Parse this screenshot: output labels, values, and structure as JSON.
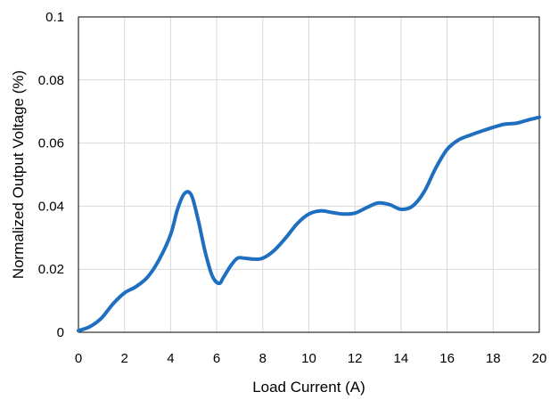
{
  "chart_data": {
    "type": "line",
    "title": "",
    "xlabel": "Load Current (A)",
    "ylabel": "Normalized Output Voltage (%)",
    "xlim": [
      0,
      20
    ],
    "ylim": [
      0,
      0.1
    ],
    "x_ticks": [
      0,
      2,
      4,
      6,
      8,
      10,
      12,
      14,
      16,
      18,
      20
    ],
    "y_ticks": [
      0,
      0.02,
      0.04,
      0.06,
      0.08,
      0.1
    ],
    "x_tick_labels": [
      "0",
      "2",
      "4",
      "6",
      "8",
      "10",
      "12",
      "14",
      "16",
      "18",
      "20"
    ],
    "y_tick_labels": [
      "0",
      "0.02",
      "0.04",
      "0.06",
      "0.08",
      "0.1"
    ],
    "grid": true,
    "legend": "none",
    "series": [
      {
        "color": "#1f6fc0",
        "x": [
          0,
          0.5,
          1.0,
          1.5,
          2.0,
          2.5,
          3.0,
          3.5,
          4.0,
          4.3,
          4.6,
          4.9,
          5.2,
          5.5,
          5.8,
          6.1,
          6.3,
          6.6,
          6.9,
          7.2,
          7.6,
          8.0,
          8.5,
          9.0,
          9.5,
          10.0,
          10.5,
          11.0,
          11.5,
          12.0,
          12.5,
          13.0,
          13.5,
          14.0,
          14.5,
          15.0,
          15.5,
          16.0,
          16.5,
          17.0,
          17.5,
          18.0,
          18.5,
          19.0,
          19.5,
          20.0
        ],
        "values": [
          0.0005,
          0.0018,
          0.0045,
          0.009,
          0.0125,
          0.0145,
          0.0175,
          0.023,
          0.031,
          0.039,
          0.044,
          0.0435,
          0.0355,
          0.0255,
          0.018,
          0.0155,
          0.0175,
          0.021,
          0.0235,
          0.0235,
          0.0232,
          0.0235,
          0.026,
          0.03,
          0.0345,
          0.0375,
          0.0385,
          0.038,
          0.0375,
          0.0378,
          0.0395,
          0.041,
          0.0405,
          0.039,
          0.04,
          0.0445,
          0.052,
          0.058,
          0.061,
          0.0625,
          0.0638,
          0.065,
          0.066,
          0.0663,
          0.0673,
          0.0682
        ]
      }
    ]
  }
}
